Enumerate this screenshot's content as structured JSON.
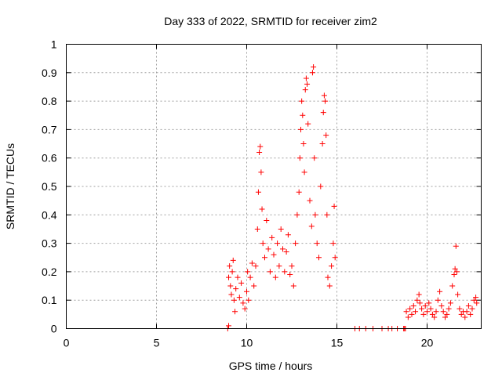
{
  "chart_data": {
    "type": "scatter",
    "title": "Day 333 of 2022, SRMTID for receiver zim2",
    "xlabel": "GPS time / hours",
    "ylabel": "SRMTID / TECUs",
    "xlim": [
      0,
      23
    ],
    "ylim": [
      0,
      1
    ],
    "x_ticks": [
      0,
      5,
      10,
      15,
      20
    ],
    "x_tick_labels": [
      "0",
      "5",
      "10",
      "15",
      "20"
    ],
    "y_ticks": [
      0,
      0.1,
      0.2,
      0.3,
      0.4,
      0.5,
      0.6,
      0.7,
      0.8,
      0.9,
      1
    ],
    "y_tick_labels": [
      "0",
      "0.1",
      "0.2",
      "0.3",
      "0.4",
      "0.5",
      "0.6",
      "0.7",
      "0.8",
      "0.9",
      "1"
    ],
    "grid": true,
    "marker": "+",
    "color": "#ff0000",
    "series": [
      {
        "name": "SRMTID",
        "points": [
          [
            8.95,
            0.0
          ],
          [
            9.0,
            0.01
          ],
          [
            9.0,
            0.18
          ],
          [
            9.05,
            0.22
          ],
          [
            9.1,
            0.15
          ],
          [
            9.15,
            0.12
          ],
          [
            9.2,
            0.2
          ],
          [
            9.25,
            0.24
          ],
          [
            9.3,
            0.1
          ],
          [
            9.35,
            0.06
          ],
          [
            9.4,
            0.14
          ],
          [
            9.5,
            0.18
          ],
          [
            9.6,
            0.11
          ],
          [
            9.7,
            0.16
          ],
          [
            9.8,
            0.09
          ],
          [
            9.9,
            0.07
          ],
          [
            10.0,
            0.13
          ],
          [
            10.05,
            0.2
          ],
          [
            10.1,
            0.1
          ],
          [
            10.2,
            0.18
          ],
          [
            10.3,
            0.23
          ],
          [
            10.4,
            0.15
          ],
          [
            10.5,
            0.22
          ],
          [
            10.6,
            0.35
          ],
          [
            10.65,
            0.48
          ],
          [
            10.7,
            0.62
          ],
          [
            10.75,
            0.64
          ],
          [
            10.8,
            0.55
          ],
          [
            10.85,
            0.42
          ],
          [
            10.9,
            0.3
          ],
          [
            11.0,
            0.25
          ],
          [
            11.1,
            0.38
          ],
          [
            11.2,
            0.28
          ],
          [
            11.3,
            0.2
          ],
          [
            11.4,
            0.32
          ],
          [
            11.5,
            0.26
          ],
          [
            11.6,
            0.18
          ],
          [
            11.7,
            0.3
          ],
          [
            11.8,
            0.22
          ],
          [
            11.9,
            0.35
          ],
          [
            12.0,
            0.28
          ],
          [
            12.1,
            0.2
          ],
          [
            12.2,
            0.27
          ],
          [
            12.3,
            0.33
          ],
          [
            12.4,
            0.19
          ],
          [
            12.5,
            0.22
          ],
          [
            12.6,
            0.15
          ],
          [
            12.7,
            0.3
          ],
          [
            12.8,
            0.4
          ],
          [
            12.9,
            0.48
          ],
          [
            12.95,
            0.6
          ],
          [
            13.0,
            0.7
          ],
          [
            13.05,
            0.8
          ],
          [
            13.1,
            0.75
          ],
          [
            13.15,
            0.65
          ],
          [
            13.2,
            0.55
          ],
          [
            13.25,
            0.84
          ],
          [
            13.3,
            0.88
          ],
          [
            13.35,
            0.86
          ],
          [
            13.4,
            0.72
          ],
          [
            13.5,
            0.45
          ],
          [
            13.6,
            0.36
          ],
          [
            13.65,
            0.9
          ],
          [
            13.7,
            0.92
          ],
          [
            13.75,
            0.6
          ],
          [
            13.8,
            0.4
          ],
          [
            13.9,
            0.3
          ],
          [
            14.0,
            0.25
          ],
          [
            14.1,
            0.5
          ],
          [
            14.2,
            0.65
          ],
          [
            14.25,
            0.76
          ],
          [
            14.3,
            0.82
          ],
          [
            14.35,
            0.8
          ],
          [
            14.4,
            0.68
          ],
          [
            14.45,
            0.4
          ],
          [
            14.5,
            0.18
          ],
          [
            14.6,
            0.15
          ],
          [
            14.7,
            0.22
          ],
          [
            14.8,
            0.3
          ],
          [
            14.85,
            0.43
          ],
          [
            14.9,
            0.25
          ],
          [
            16.0,
            0.0
          ],
          [
            16.25,
            0.0
          ],
          [
            16.6,
            0.0
          ],
          [
            17.0,
            0.0
          ],
          [
            17.5,
            0.0
          ],
          [
            17.85,
            0.0
          ],
          [
            18.05,
            0.0
          ],
          [
            18.35,
            0.0
          ],
          [
            18.7,
            0.0
          ],
          [
            18.75,
            0.0
          ],
          [
            18.8,
            0.0
          ],
          [
            18.85,
            0.06
          ],
          [
            18.95,
            0.04
          ],
          [
            19.05,
            0.07
          ],
          [
            19.15,
            0.05
          ],
          [
            19.25,
            0.08
          ],
          [
            19.35,
            0.06
          ],
          [
            19.45,
            0.1
          ],
          [
            19.55,
            0.12
          ],
          [
            19.6,
            0.09
          ],
          [
            19.7,
            0.07
          ],
          [
            19.8,
            0.05
          ],
          [
            19.9,
            0.08
          ],
          [
            20.0,
            0.06
          ],
          [
            20.1,
            0.09
          ],
          [
            20.2,
            0.07
          ],
          [
            20.3,
            0.05
          ],
          [
            20.4,
            0.04
          ],
          [
            20.5,
            0.06
          ],
          [
            20.6,
            0.1
          ],
          [
            20.7,
            0.13
          ],
          [
            20.8,
            0.08
          ],
          [
            20.9,
            0.06
          ],
          [
            21.0,
            0.04
          ],
          [
            21.1,
            0.05
          ],
          [
            21.2,
            0.07
          ],
          [
            21.3,
            0.09
          ],
          [
            21.4,
            0.15
          ],
          [
            21.5,
            0.19
          ],
          [
            21.55,
            0.21
          ],
          [
            21.6,
            0.29
          ],
          [
            21.65,
            0.2
          ],
          [
            21.7,
            0.12
          ],
          [
            21.8,
            0.07
          ],
          [
            21.9,
            0.05
          ],
          [
            22.0,
            0.06
          ],
          [
            22.1,
            0.04
          ],
          [
            22.2,
            0.06
          ],
          [
            22.3,
            0.08
          ],
          [
            22.4,
            0.05
          ],
          [
            22.5,
            0.07
          ],
          [
            22.6,
            0.1
          ],
          [
            22.7,
            0.11
          ],
          [
            22.75,
            0.09
          ]
        ]
      }
    ]
  }
}
